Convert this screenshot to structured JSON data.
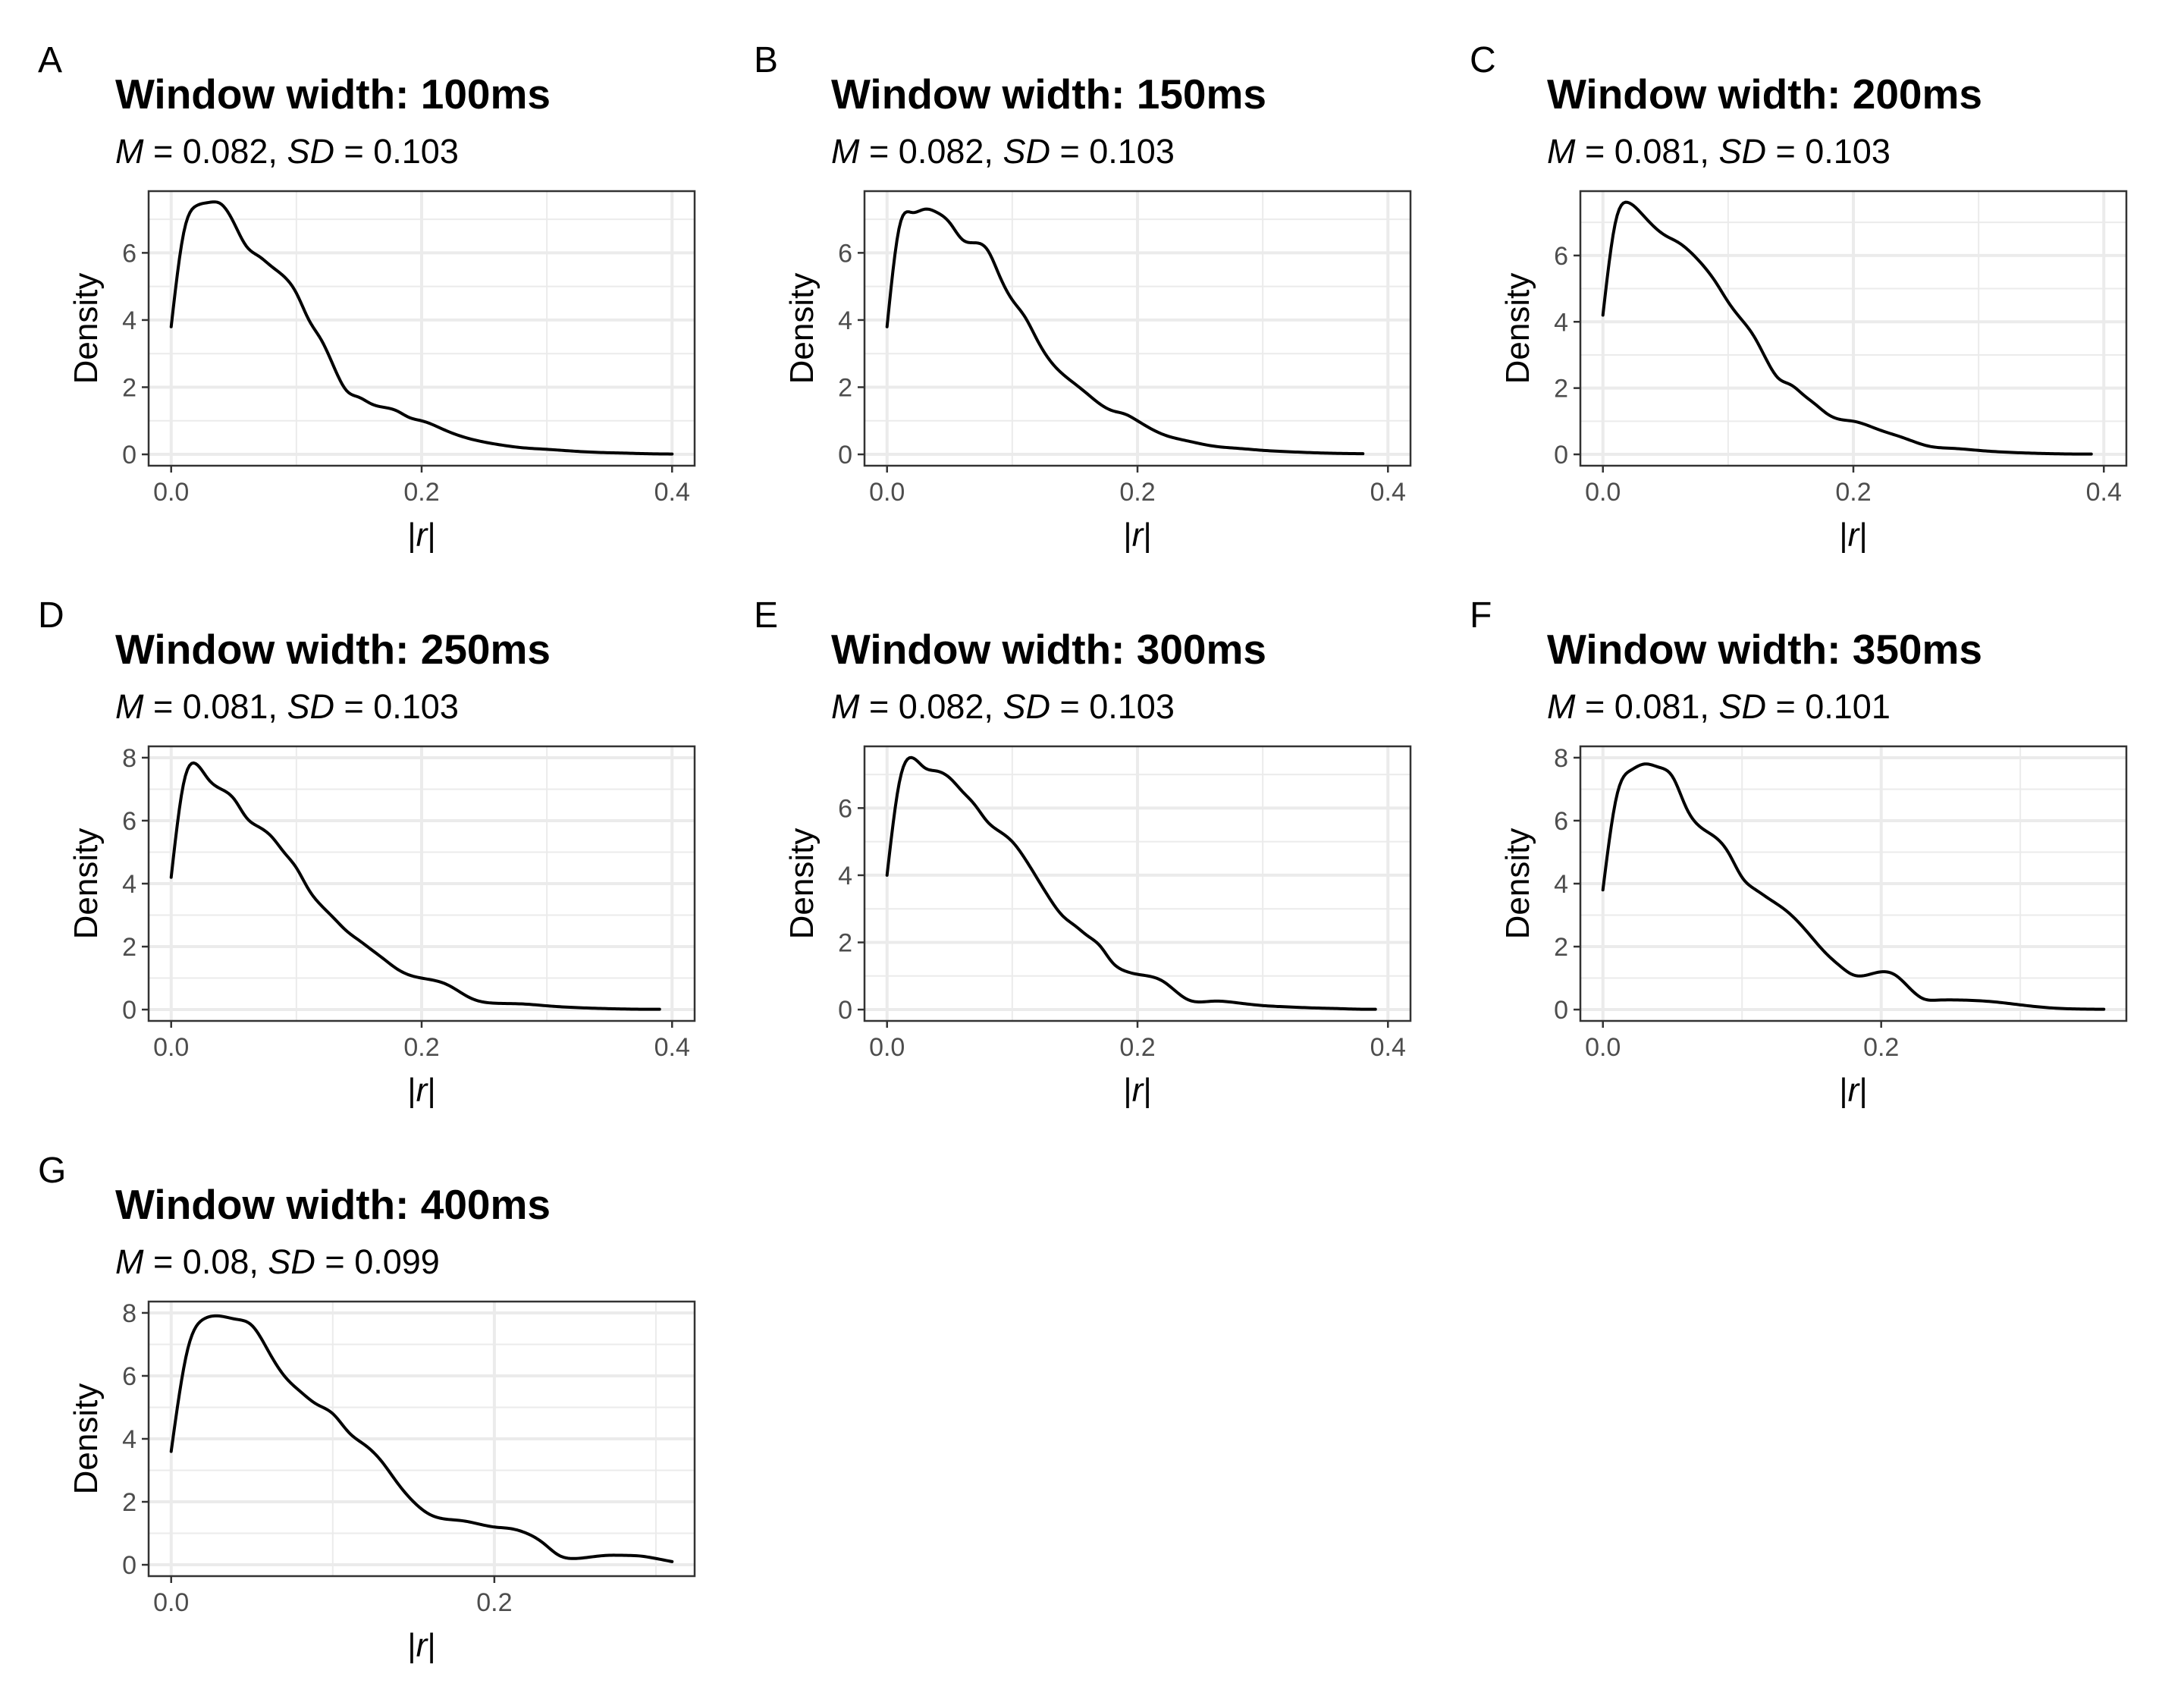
{
  "chart_data": [
    {
      "type": "line",
      "panel_label": "A",
      "title": "Window width: 100ms",
      "subtitle": {
        "m_label": "M",
        "m_value": "0.082",
        "sd_label": "SD",
        "sd_value": "0.103"
      },
      "xlabel": "|r|",
      "ylabel": "Density",
      "xlim": [
        0,
        0.4
      ],
      "ylim": [
        0,
        7.5
      ],
      "x_ticks": [
        0.0,
        0.2,
        0.4
      ],
      "x_tick_labels": [
        "0.0",
        "0.2",
        "0.4"
      ],
      "y_ticks": [
        0,
        2,
        4,
        6
      ],
      "y_tick_labels": [
        "0",
        "2",
        "4",
        "6"
      ],
      "grid": true,
      "x": [
        0.0,
        0.01,
        0.02,
        0.03,
        0.04,
        0.05,
        0.06,
        0.07,
        0.08,
        0.09,
        0.1,
        0.11,
        0.12,
        0.13,
        0.14,
        0.15,
        0.16,
        0.17,
        0.18,
        0.19,
        0.2,
        0.22,
        0.24,
        0.26,
        0.28,
        0.3,
        0.32,
        0.34,
        0.36,
        0.38,
        0.4
      ],
      "y": [
        3.8,
        6.6,
        7.4,
        7.5,
        7.45,
        6.9,
        6.2,
        5.9,
        5.6,
        5.3,
        4.8,
        4.0,
        3.4,
        2.6,
        1.9,
        1.7,
        1.5,
        1.4,
        1.3,
        1.1,
        1.0,
        0.7,
        0.45,
        0.3,
        0.2,
        0.15,
        0.1,
        0.06,
        0.04,
        0.02,
        0.01
      ]
    },
    {
      "type": "line",
      "panel_label": "B",
      "title": "Window width: 150ms",
      "subtitle": {
        "m_label": "M",
        "m_value": "0.082",
        "sd_label": "SD",
        "sd_value": "0.103"
      },
      "xlabel": "|r|",
      "ylabel": "Density",
      "xlim": [
        0,
        0.4
      ],
      "ylim": [
        0,
        7.5
      ],
      "x_ticks": [
        0.0,
        0.2,
        0.4
      ],
      "x_tick_labels": [
        "0.0",
        "0.2",
        "0.4"
      ],
      "y_ticks": [
        0,
        2,
        4,
        6
      ],
      "y_tick_labels": [
        "0",
        "2",
        "4",
        "6"
      ],
      "grid": true,
      "x": [
        0.0,
        0.01,
        0.02,
        0.03,
        0.04,
        0.05,
        0.06,
        0.07,
        0.08,
        0.09,
        0.1,
        0.11,
        0.12,
        0.13,
        0.14,
        0.15,
        0.16,
        0.17,
        0.18,
        0.19,
        0.2,
        0.22,
        0.24,
        0.26,
        0.28,
        0.3,
        0.32,
        0.34,
        0.36,
        0.38
      ],
      "y": [
        3.8,
        6.8,
        7.2,
        7.3,
        7.2,
        6.9,
        6.4,
        6.3,
        6.1,
        5.3,
        4.6,
        4.1,
        3.4,
        2.8,
        2.4,
        2.1,
        1.8,
        1.5,
        1.3,
        1.2,
        1.0,
        0.6,
        0.4,
        0.25,
        0.18,
        0.12,
        0.08,
        0.05,
        0.03,
        0.02
      ]
    },
    {
      "type": "line",
      "panel_label": "C",
      "title": "Window width: 200ms",
      "subtitle": {
        "m_label": "M",
        "m_value": "0.081",
        "sd_label": "SD",
        "sd_value": "0.103"
      },
      "xlabel": "|r|",
      "ylabel": "Density",
      "xlim": [
        0,
        0.4
      ],
      "ylim": [
        0,
        7.6
      ],
      "x_ticks": [
        0.0,
        0.2,
        0.4
      ],
      "x_tick_labels": [
        "0.0",
        "0.2",
        "0.4"
      ],
      "y_ticks": [
        0,
        2,
        4,
        6
      ],
      "y_tick_labels": [
        "0",
        "2",
        "4",
        "6"
      ],
      "grid": true,
      "x": [
        0.0,
        0.01,
        0.02,
        0.03,
        0.04,
        0.05,
        0.06,
        0.07,
        0.08,
        0.09,
        0.1,
        0.11,
        0.12,
        0.13,
        0.14,
        0.15,
        0.16,
        0.17,
        0.18,
        0.19,
        0.2,
        0.22,
        0.24,
        0.26,
        0.28,
        0.3,
        0.32,
        0.34,
        0.36,
        0.38,
        0.39
      ],
      "y": [
        4.2,
        7.0,
        7.6,
        7.3,
        6.9,
        6.6,
        6.4,
        6.1,
        5.7,
        5.2,
        4.6,
        4.1,
        3.6,
        2.9,
        2.3,
        2.1,
        1.8,
        1.5,
        1.2,
        1.05,
        1.0,
        0.75,
        0.5,
        0.25,
        0.18,
        0.12,
        0.07,
        0.04,
        0.02,
        0.01,
        0.01
      ]
    },
    {
      "type": "line",
      "panel_label": "D",
      "title": "Window width: 250ms",
      "subtitle": {
        "m_label": "M",
        "m_value": "0.081",
        "sd_label": "SD",
        "sd_value": "0.103"
      },
      "xlabel": "|r|",
      "ylabel": "Density",
      "xlim": [
        0,
        0.4
      ],
      "ylim": [
        0,
        8.0
      ],
      "x_ticks": [
        0.0,
        0.2,
        0.4
      ],
      "x_tick_labels": [
        "0.0",
        "0.2",
        "0.4"
      ],
      "y_ticks": [
        0,
        2,
        4,
        6,
        8
      ],
      "y_tick_labels": [
        "0",
        "2",
        "4",
        "6",
        "8"
      ],
      "grid": true,
      "x": [
        0.0,
        0.01,
        0.02,
        0.03,
        0.04,
        0.05,
        0.06,
        0.07,
        0.08,
        0.09,
        0.1,
        0.11,
        0.12,
        0.13,
        0.14,
        0.15,
        0.16,
        0.17,
        0.18,
        0.19,
        0.2,
        0.22,
        0.24,
        0.26,
        0.28,
        0.3,
        0.32,
        0.34,
        0.36,
        0.38,
        0.39
      ],
      "y": [
        4.2,
        7.2,
        7.8,
        7.3,
        7.0,
        6.7,
        6.1,
        5.8,
        5.5,
        5.0,
        4.5,
        3.8,
        3.3,
        2.9,
        2.5,
        2.2,
        1.9,
        1.6,
        1.3,
        1.1,
        1.0,
        0.8,
        0.35,
        0.2,
        0.18,
        0.12,
        0.07,
        0.04,
        0.02,
        0.01,
        0.01
      ]
    },
    {
      "type": "line",
      "panel_label": "E",
      "title": "Window width: 300ms",
      "subtitle": {
        "m_label": "M",
        "m_value": "0.082",
        "sd_label": "SD",
        "sd_value": "0.103"
      },
      "xlabel": "|r|",
      "ylabel": "Density",
      "xlim": [
        0,
        0.4
      ],
      "ylim": [
        0,
        7.5
      ],
      "x_ticks": [
        0.0,
        0.2,
        0.4
      ],
      "x_tick_labels": [
        "0.0",
        "0.2",
        "0.4"
      ],
      "y_ticks": [
        0,
        2,
        4,
        6
      ],
      "y_tick_labels": [
        "0",
        "2",
        "4",
        "6"
      ],
      "grid": true,
      "x": [
        0.0,
        0.01,
        0.02,
        0.03,
        0.04,
        0.05,
        0.06,
        0.07,
        0.08,
        0.09,
        0.1,
        0.11,
        0.12,
        0.13,
        0.14,
        0.15,
        0.16,
        0.17,
        0.18,
        0.19,
        0.2,
        0.22,
        0.24,
        0.26,
        0.28,
        0.3,
        0.32,
        0.34,
        0.36,
        0.38,
        0.39
      ],
      "y": [
        4.0,
        6.8,
        7.5,
        7.2,
        7.1,
        6.9,
        6.5,
        6.1,
        5.6,
        5.3,
        5.0,
        4.5,
        3.9,
        3.3,
        2.8,
        2.5,
        2.2,
        1.9,
        1.4,
        1.15,
        1.05,
        0.85,
        0.3,
        0.25,
        0.2,
        0.12,
        0.08,
        0.05,
        0.03,
        0.01,
        0.01
      ]
    },
    {
      "type": "line",
      "panel_label": "F",
      "title": "Window width: 350ms",
      "subtitle": {
        "m_label": "M",
        "m_value": "0.081",
        "sd_label": "SD",
        "sd_value": "0.101"
      },
      "xlabel": "|r|",
      "ylabel": "Density",
      "xlim": [
        0,
        0.36
      ],
      "ylim": [
        0,
        8.0
      ],
      "x_ticks": [
        0.0,
        0.2
      ],
      "x_tick_labels": [
        "0.0",
        "0.2"
      ],
      "y_ticks": [
        0,
        2,
        4,
        6,
        8
      ],
      "y_tick_labels": [
        "0",
        "2",
        "4",
        "6",
        "8"
      ],
      "grid": true,
      "x": [
        0.0,
        0.01,
        0.02,
        0.03,
        0.04,
        0.05,
        0.06,
        0.07,
        0.08,
        0.09,
        0.1,
        0.11,
        0.12,
        0.13,
        0.14,
        0.15,
        0.16,
        0.17,
        0.18,
        0.19,
        0.2,
        0.21,
        0.22,
        0.23,
        0.24,
        0.26,
        0.28,
        0.3,
        0.32,
        0.34,
        0.36
      ],
      "y": [
        3.8,
        6.8,
        7.6,
        7.8,
        7.7,
        7.4,
        6.4,
        5.8,
        5.5,
        5.0,
        4.2,
        3.8,
        3.5,
        3.2,
        2.8,
        2.3,
        1.8,
        1.4,
        1.1,
        1.1,
        1.2,
        1.1,
        0.7,
        0.35,
        0.3,
        0.3,
        0.25,
        0.15,
        0.06,
        0.02,
        0.01
      ]
    },
    {
      "type": "line",
      "panel_label": "G",
      "title": "Window width: 400ms",
      "subtitle": {
        "m_label": "M",
        "m_value": "0.08",
        "sd_label": "SD",
        "sd_value": "0.099"
      },
      "xlabel": "|r|",
      "ylabel": "Density",
      "xlim": [
        0,
        0.31
      ],
      "ylim": [
        0,
        8.0
      ],
      "x_ticks": [
        0.0,
        0.2
      ],
      "x_tick_labels": [
        "0.0",
        "0.2"
      ],
      "y_ticks": [
        0,
        2,
        4,
        6,
        8
      ],
      "y_tick_labels": [
        "0",
        "2",
        "4",
        "6",
        "8"
      ],
      "grid": true,
      "x": [
        0.0,
        0.01,
        0.02,
        0.03,
        0.04,
        0.05,
        0.06,
        0.07,
        0.08,
        0.09,
        0.1,
        0.11,
        0.12,
        0.13,
        0.14,
        0.15,
        0.16,
        0.17,
        0.18,
        0.19,
        0.2,
        0.21,
        0.22,
        0.23,
        0.24,
        0.25,
        0.26,
        0.27,
        0.28,
        0.29,
        0.3,
        0.31
      ],
      "y": [
        3.6,
        6.8,
        7.8,
        7.9,
        7.8,
        7.6,
        6.8,
        6.0,
        5.5,
        5.1,
        4.8,
        4.2,
        3.8,
        3.3,
        2.6,
        2.0,
        1.6,
        1.45,
        1.4,
        1.3,
        1.2,
        1.15,
        1.0,
        0.7,
        0.3,
        0.2,
        0.25,
        0.3,
        0.3,
        0.28,
        0.2,
        0.1
      ]
    }
  ]
}
